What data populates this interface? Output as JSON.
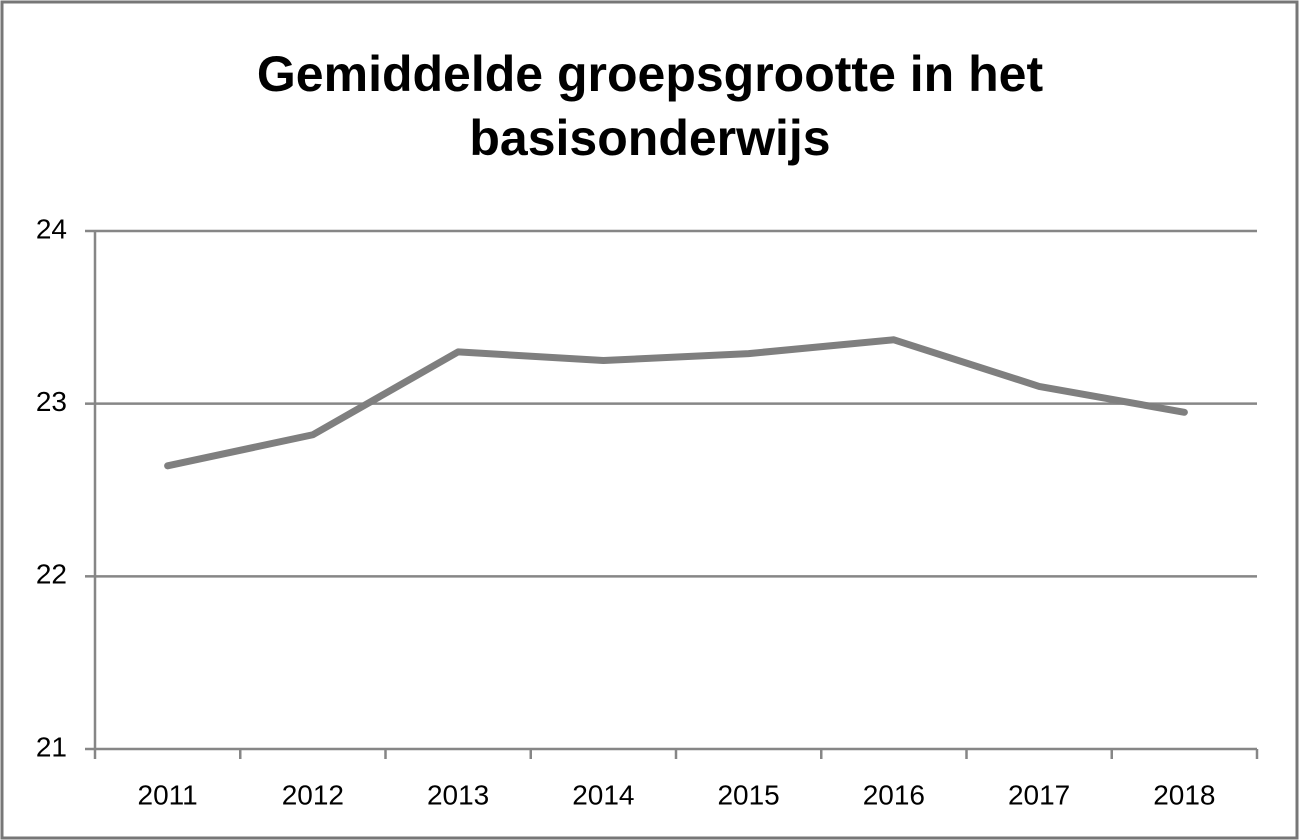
{
  "chart_data": {
    "type": "line",
    "title": "Gemiddelde groepsgrootte in het basisonderwijs",
    "categories": [
      "2011",
      "2012",
      "2013",
      "2014",
      "2015",
      "2016",
      "2017",
      "2018"
    ],
    "series": [
      {
        "name": "Gemiddelde groepsgrootte",
        "color": "#7f7f7f",
        "values": [
          22.64,
          22.82,
          23.3,
          23.25,
          23.29,
          23.37,
          23.1,
          22.95
        ]
      }
    ],
    "ylim": [
      21,
      24
    ],
    "yticks": [
      21,
      22,
      23,
      24
    ],
    "grid": true
  }
}
